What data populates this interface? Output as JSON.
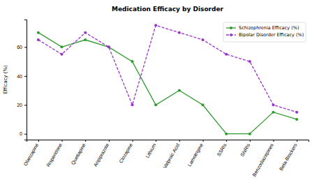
{
  "chart_data": {
    "type": "line",
    "title": "Medication Efficacy by Disorder",
    "y_label": "Efficacy (%)",
    "categories": [
      "Olanzapine",
      "Risperidone",
      "Quetiapine",
      "Aripiprazole",
      "Clozapine",
      "Lithium",
      "Valproic Acid",
      "Lamotrigine",
      "SSRIs",
      "SNRIs",
      "Benzodiazepines",
      "Beta-Blockers"
    ],
    "series": [
      {
        "name": "Schizophrenia Efficacy (%)",
        "color": "#2e9a2e",
        "marker": "circle",
        "line_style": "solid",
        "values": [
          70,
          60,
          65,
          60,
          50,
          20,
          30,
          20,
          0,
          0,
          15,
          10
        ]
      },
      {
        "name": "Bipolar Disorder Efficacy (%)",
        "color": "#9933cc",
        "marker": "circle",
        "line_style": "dashed",
        "values": [
          65,
          55,
          70,
          60,
          20,
          75,
          70,
          65,
          55,
          50,
          20,
          15
        ]
      }
    ],
    "ylim": [
      -4,
      79
    ],
    "yticks": [
      0,
      20,
      40,
      60
    ],
    "grid": false,
    "legend": "upper right"
  }
}
